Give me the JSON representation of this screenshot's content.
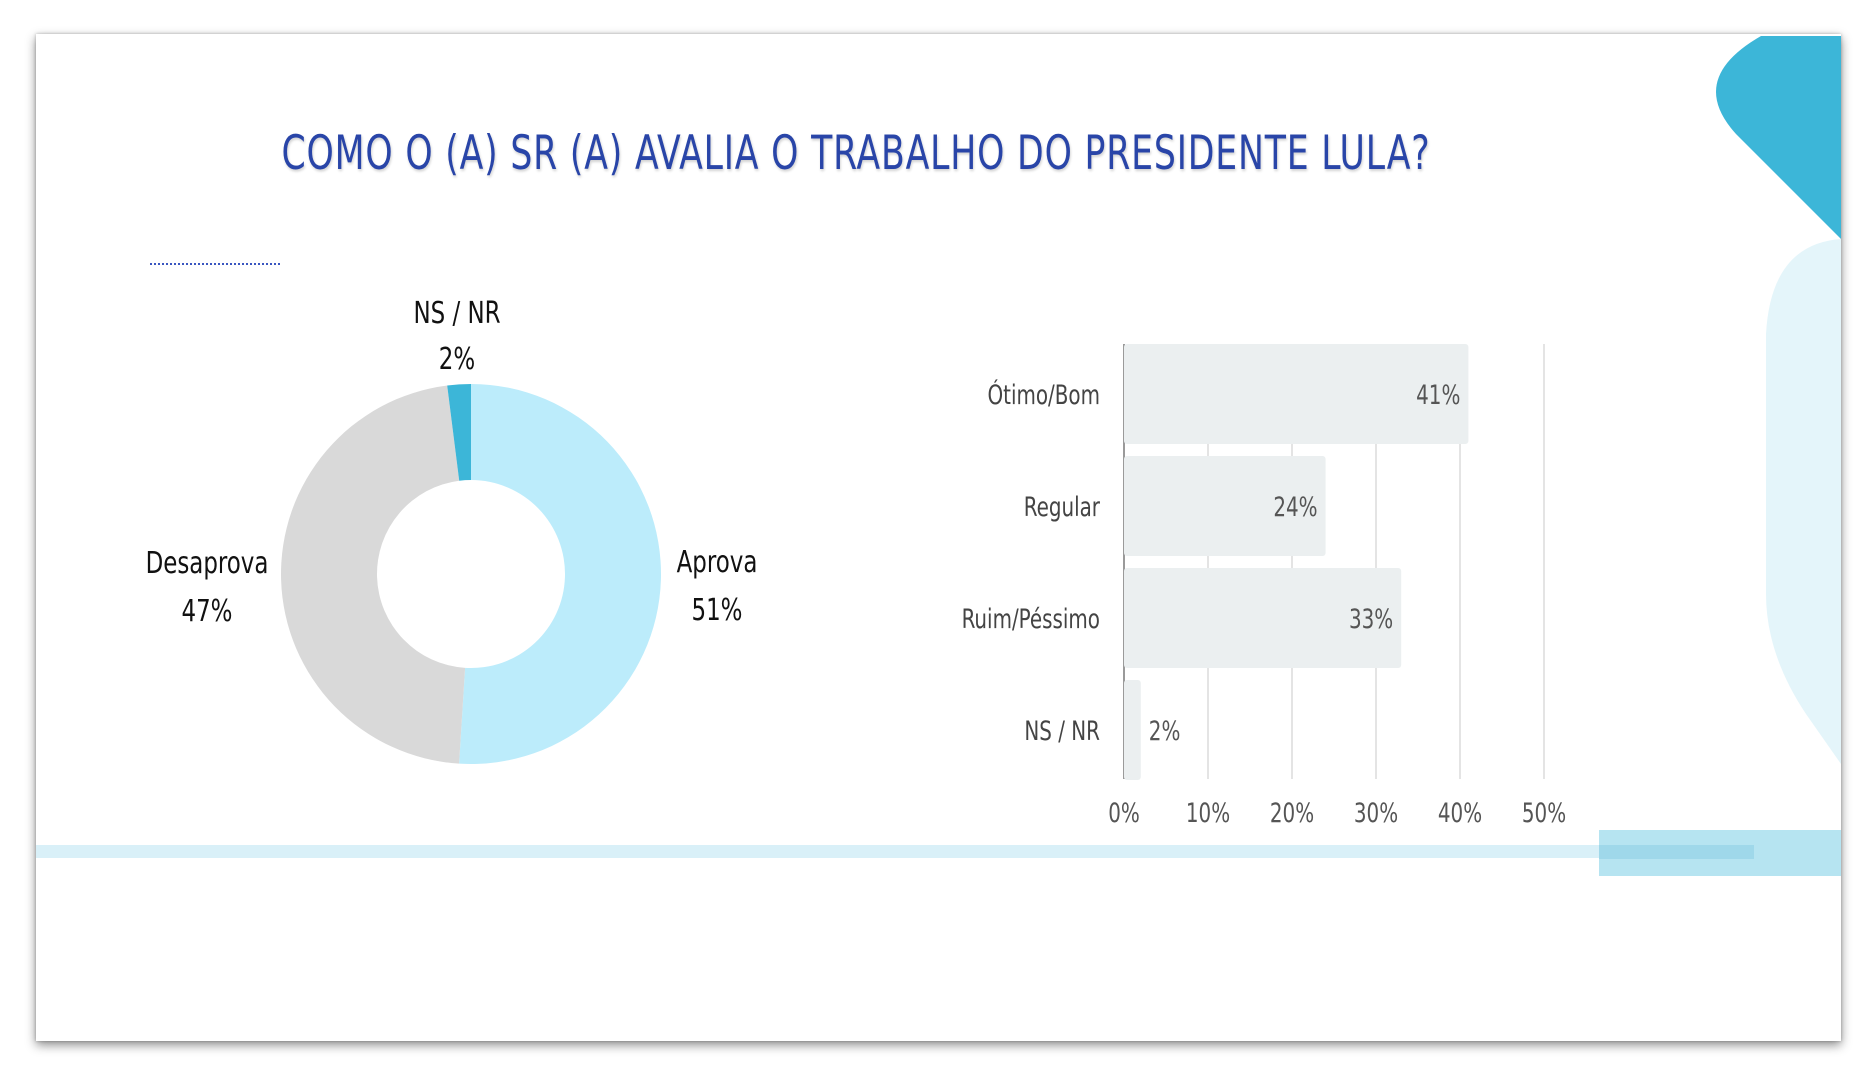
{
  "title": "COMO O (A) SR (A) AVALIA O TRABALHO DO PRESIDENTE LULA?",
  "colors": {
    "title": "#2945a8",
    "aprova": "#bcecfb",
    "desaprova": "#d9d9d9",
    "nsnr": "#3cb6d8",
    "bar": "#ebeff0",
    "accent": "#3cb6d8",
    "accent_light": "#e4f5fa"
  },
  "chart_data": [
    {
      "type": "pie",
      "hole": true,
      "labels": [
        "Aprova",
        "Desaprova",
        "NS / NR"
      ],
      "display": [
        "51%",
        "47%",
        "2%"
      ],
      "values": [
        51,
        47,
        2
      ]
    },
    {
      "type": "bar",
      "orientation": "horizontal",
      "categories": [
        "Ótimo/Bom",
        "Regular",
        "Ruim/Péssimo",
        "NS / NR"
      ],
      "values": [
        41,
        24,
        33,
        2
      ],
      "display": [
        "41%",
        "24%",
        "33%",
        "2%"
      ],
      "xlim": [
        0,
        50
      ],
      "ticks": [
        0,
        10,
        20,
        30,
        40,
        50
      ],
      "tick_labels": [
        "0%",
        "10%",
        "20%",
        "30%",
        "40%",
        "50%"
      ],
      "grid": true
    }
  ]
}
